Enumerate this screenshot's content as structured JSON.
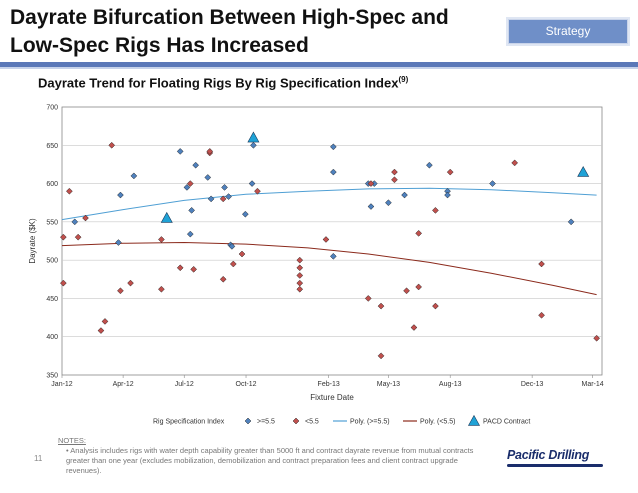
{
  "header": {
    "title_line1": "Dayrate Bifurcation Between High-Spec and",
    "title_line2": "Low-Spec Rigs Has Increased",
    "strategy_label": "Strategy",
    "subtitle": "Dayrate Trend for Floating Rigs By Rig Specification Index",
    "subtitle_note": "(9)"
  },
  "colors": {
    "high_spec": "#4f81bd",
    "low_spec": "#c0504d",
    "poly_high": "#4f9fd4",
    "poly_low": "#8b2a1c",
    "pacd": "#1fa2d6",
    "accent": "#5a78b8"
  },
  "chart_data": {
    "type": "scatter",
    "xlabel": "Fixture Date",
    "ylabel": "Dayrate ($K)",
    "ylim": [
      350,
      700
    ],
    "yticks": [
      350,
      400,
      450,
      500,
      550,
      600,
      650,
      700
    ],
    "xticks": [
      {
        "label": "Jan-12",
        "date": "2012-01-01"
      },
      {
        "label": "Apr-12",
        "date": "2012-04-01"
      },
      {
        "label": "Jul-12",
        "date": "2012-07-01"
      },
      {
        "label": "Oct-12",
        "date": "2012-10-01"
      },
      {
        "label": "Feb-13",
        "date": "2013-02-01"
      },
      {
        "label": "May-13",
        "date": "2013-05-01"
      },
      {
        "label": "Aug-13",
        "date": "2013-08-01"
      },
      {
        "label": "Dec-13",
        "date": "2013-12-01"
      },
      {
        "label": "Mar-14",
        "date": "2014-03-01"
      }
    ],
    "xlim": [
      "2012-01-01",
      "2014-03-15"
    ],
    "legend_title": "Rig Specification Index",
    "legend_position": "bottom",
    "series": [
      {
        "name": ">=5.5",
        "marker": "diamond",
        "color": "#4f81bd",
        "points": [
          [
            "2012-01-20",
            550
          ],
          [
            "2012-03-25",
            523
          ],
          [
            "2012-03-28",
            585
          ],
          [
            "2012-04-17",
            610
          ],
          [
            "2012-06-25",
            642
          ],
          [
            "2012-07-05",
            595
          ],
          [
            "2012-07-10",
            534
          ],
          [
            "2012-07-12",
            565
          ],
          [
            "2012-07-18",
            624
          ],
          [
            "2012-08-05",
            608
          ],
          [
            "2012-08-10",
            580
          ],
          [
            "2012-08-30",
            595
          ],
          [
            "2012-09-08",
            520
          ],
          [
            "2012-09-10",
            518
          ],
          [
            "2012-09-05",
            583
          ],
          [
            "2012-09-30",
            560
          ],
          [
            "2012-10-10",
            600
          ],
          [
            "2012-10-12",
            650
          ],
          [
            "2013-02-08",
            648
          ],
          [
            "2013-02-08",
            615
          ],
          [
            "2013-02-08",
            505
          ],
          [
            "2013-04-01",
            600
          ],
          [
            "2013-04-10",
            600
          ],
          [
            "2013-04-05",
            570
          ],
          [
            "2013-05-01",
            575
          ],
          [
            "2013-05-25",
            585
          ],
          [
            "2013-07-01",
            624
          ],
          [
            "2013-07-28",
            590
          ],
          [
            "2013-07-28",
            585
          ],
          [
            "2013-10-03",
            600
          ],
          [
            "2014-01-28",
            550
          ]
        ]
      },
      {
        "name": "<5.5",
        "marker": "diamond",
        "color": "#c0504d",
        "points": [
          [
            "2012-01-03",
            530
          ],
          [
            "2012-01-03",
            470
          ],
          [
            "2012-01-12",
            590
          ],
          [
            "2012-01-25",
            530
          ],
          [
            "2012-02-05",
            555
          ],
          [
            "2012-02-28",
            408
          ],
          [
            "2012-03-05",
            420
          ],
          [
            "2012-03-15",
            650
          ],
          [
            "2012-03-28",
            460
          ],
          [
            "2012-04-12",
            470
          ],
          [
            "2012-05-28",
            527
          ],
          [
            "2012-05-28",
            462
          ],
          [
            "2012-06-25",
            490
          ],
          [
            "2012-07-10",
            600
          ],
          [
            "2012-07-15",
            488
          ],
          [
            "2012-08-08",
            640
          ],
          [
            "2012-08-08",
            642
          ],
          [
            "2012-08-28",
            580
          ],
          [
            "2012-08-28",
            475
          ],
          [
            "2012-09-12",
            495
          ],
          [
            "2012-09-25",
            508
          ],
          [
            "2012-10-18",
            590
          ],
          [
            "2012-12-20",
            500
          ],
          [
            "2012-12-20",
            490
          ],
          [
            "2012-12-20",
            480
          ],
          [
            "2012-12-20",
            470
          ],
          [
            "2012-12-20",
            462
          ],
          [
            "2013-01-28",
            527
          ],
          [
            "2013-04-01",
            450
          ],
          [
            "2013-04-05",
            600
          ],
          [
            "2013-04-20",
            440
          ],
          [
            "2013-04-20",
            375
          ],
          [
            "2013-05-10",
            615
          ],
          [
            "2013-05-10",
            605
          ],
          [
            "2013-05-28",
            460
          ],
          [
            "2013-06-08",
            412
          ],
          [
            "2013-06-15",
            535
          ],
          [
            "2013-06-15",
            465
          ],
          [
            "2013-07-10",
            440
          ],
          [
            "2013-07-10",
            565
          ],
          [
            "2013-08-01",
            615
          ],
          [
            "2013-11-05",
            627
          ],
          [
            "2013-12-15",
            495
          ],
          [
            "2013-12-15",
            428
          ],
          [
            "2014-03-07",
            398
          ]
        ]
      },
      {
        "name": "PACD Contract",
        "marker": "triangle",
        "color": "#1fa2d6",
        "points": [
          [
            "2012-06-05",
            555
          ],
          [
            "2012-10-12",
            660
          ],
          [
            "2014-02-15",
            615
          ]
        ]
      }
    ],
    "trendlines": [
      {
        "name": "Poly. (>=5.5)",
        "color": "#4f9fd4",
        "points": [
          [
            "2012-01-01",
            553
          ],
          [
            "2012-04-01",
            566
          ],
          [
            "2012-07-01",
            578
          ],
          [
            "2012-10-01",
            586
          ],
          [
            "2013-01-01",
            590
          ],
          [
            "2013-04-01",
            593
          ],
          [
            "2013-07-01",
            594
          ],
          [
            "2013-10-01",
            592
          ],
          [
            "2014-01-01",
            588
          ],
          [
            "2014-03-07",
            585
          ]
        ]
      },
      {
        "name": "Poly. (<5.5)",
        "color": "#8b2a1c",
        "points": [
          [
            "2012-01-01",
            519
          ],
          [
            "2012-04-01",
            522
          ],
          [
            "2012-07-01",
            523
          ],
          [
            "2012-10-01",
            521
          ],
          [
            "2013-01-01",
            516
          ],
          [
            "2013-04-01",
            508
          ],
          [
            "2013-07-01",
            497
          ],
          [
            "2013-10-01",
            483
          ],
          [
            "2014-01-01",
            467
          ],
          [
            "2014-03-07",
            455
          ]
        ]
      }
    ]
  },
  "notes": {
    "header": "NOTES:",
    "bullet": "Analysis includes rigs with water depth capability greater than 5000 ft and contract dayrate revenue from mutual contracts greater than one year (excludes mobilization, demobilization and contract preparation fees and client contract upgrade revenues)."
  },
  "footer": {
    "page_number": "11",
    "logo_text": "Pacific Drilling"
  }
}
